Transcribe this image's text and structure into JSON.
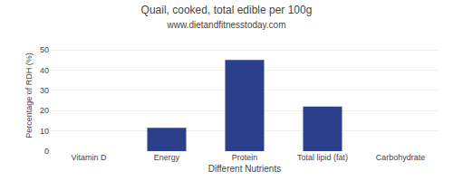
{
  "chart_data": {
    "type": "bar",
    "title": "Quail, cooked, total edible per 100g",
    "subtitle": "www.dietandfitnesstoday.com",
    "xlabel": "Different Nutrients",
    "ylabel": "Percentage of RDH (%)",
    "categories": [
      "Vitamin D",
      "Energy",
      "Protein",
      "Total lipid (fat)",
      "Carbohydrate"
    ],
    "values": [
      0,
      11.5,
      45,
      22,
      0
    ],
    "color": "#2b3f8c",
    "ylim": [
      0,
      55
    ],
    "yticks": [
      0,
      10,
      20,
      30,
      40,
      50
    ],
    "grid": true
  }
}
